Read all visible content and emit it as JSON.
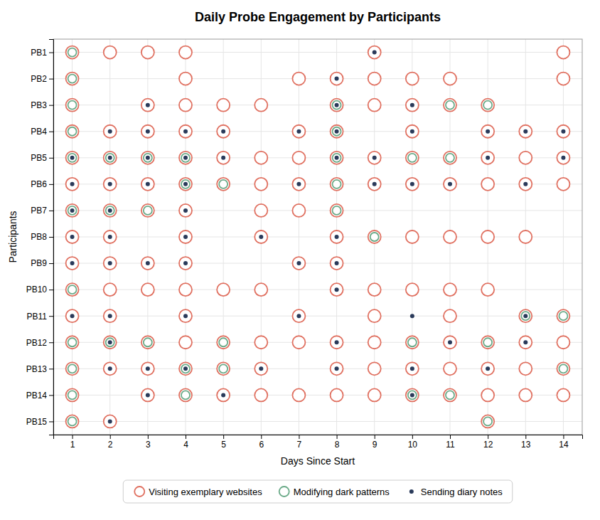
{
  "chart_data": {
    "type": "scatter",
    "title": "Daily Probe Engagement by Participants",
    "xlabel": "Days Since Start",
    "ylabel": "Participants",
    "categories": [
      "PB1",
      "PB2",
      "PB3",
      "PB4",
      "PB5",
      "PB6",
      "PB7",
      "PB8",
      "PB9",
      "PB10",
      "PB11",
      "PB12",
      "PB13",
      "PB14",
      "PB15"
    ],
    "xlim": [
      0.5,
      14.5
    ],
    "xticks": [
      1,
      2,
      3,
      4,
      5,
      6,
      7,
      8,
      9,
      10,
      11,
      12,
      13,
      14
    ],
    "grid": true,
    "legend": "bottom",
    "series": [
      {
        "name": "Visiting exemplary websites",
        "color": "#e07060",
        "marker": "ring",
        "x": [
          1,
          2,
          3,
          4,
          9,
          14,
          1,
          4,
          7,
          8,
          9,
          10,
          11,
          14,
          1,
          3,
          4,
          5,
          6,
          8,
          9,
          10,
          11,
          12,
          1,
          2,
          3,
          4,
          5,
          7,
          8,
          10,
          12,
          13,
          14,
          1,
          2,
          3,
          4,
          5,
          6,
          7,
          8,
          9,
          10,
          11,
          12,
          13,
          14,
          1,
          2,
          3,
          4,
          5,
          6,
          7,
          8,
          9,
          10,
          11,
          12,
          13,
          14,
          1,
          2,
          3,
          4,
          6,
          7,
          8,
          1,
          2,
          4,
          6,
          8,
          9,
          10,
          11,
          12,
          13,
          1,
          2,
          3,
          4,
          7,
          8,
          1,
          2,
          3,
          4,
          5,
          6,
          8,
          9,
          10,
          11,
          12,
          1,
          2,
          4,
          7,
          9,
          11,
          13,
          14,
          1,
          2,
          3,
          4,
          5,
          6,
          7,
          8,
          9,
          10,
          11,
          12,
          13,
          14,
          1,
          2,
          3,
          4,
          5,
          6,
          8,
          9,
          10,
          11,
          12,
          13,
          14,
          1,
          3,
          4,
          5,
          6,
          7,
          8,
          9,
          10,
          11,
          12,
          13,
          14,
          1,
          2,
          12
        ],
        "values": [
          "PB1",
          "PB1",
          "PB1",
          "PB1",
          "PB1",
          "PB1",
          "PB2",
          "PB2",
          "PB2",
          "PB2",
          "PB2",
          "PB2",
          "PB2",
          "PB2",
          "PB3",
          "PB3",
          "PB3",
          "PB3",
          "PB3",
          "PB3",
          "PB3",
          "PB3",
          "PB3",
          "PB3",
          "PB4",
          "PB4",
          "PB4",
          "PB4",
          "PB4",
          "PB4",
          "PB4",
          "PB4",
          "PB4",
          "PB4",
          "PB4",
          "PB5",
          "PB5",
          "PB5",
          "PB5",
          "PB5",
          "PB5",
          "PB5",
          "PB5",
          "PB5",
          "PB5",
          "PB5",
          "PB5",
          "PB5",
          "PB5",
          "PB6",
          "PB6",
          "PB6",
          "PB6",
          "PB6",
          "PB6",
          "PB6",
          "PB6",
          "PB6",
          "PB6",
          "PB6",
          "PB6",
          "PB6",
          "PB6",
          "PB7",
          "PB7",
          "PB7",
          "PB7",
          "PB7",
          "PB7",
          "PB7",
          "PB8",
          "PB8",
          "PB8",
          "PB8",
          "PB8",
          "PB8",
          "PB8",
          "PB8",
          "PB8",
          "PB8",
          "PB9",
          "PB9",
          "PB9",
          "PB9",
          "PB9",
          "PB9",
          "PB10",
          "PB10",
          "PB10",
          "PB10",
          "PB10",
          "PB10",
          "PB10",
          "PB10",
          "PB10",
          "PB10",
          "PB10",
          "PB11",
          "PB11",
          "PB11",
          "PB11",
          "PB11",
          "PB11",
          "PB11",
          "PB11",
          "PB12",
          "PB12",
          "PB12",
          "PB12",
          "PB12",
          "PB12",
          "PB12",
          "PB12",
          "PB12",
          "PB12",
          "PB12",
          "PB12",
          "PB12",
          "PB12",
          "PB13",
          "PB13",
          "PB13",
          "PB13",
          "PB13",
          "PB13",
          "PB13",
          "PB13",
          "PB13",
          "PB13",
          "PB13",
          "PB13",
          "PB13",
          "PB14",
          "PB14",
          "PB14",
          "PB14",
          "PB14",
          "PB14",
          "PB14",
          "PB14",
          "PB14",
          "PB14",
          "PB14",
          "PB14",
          "PB14",
          "PB15",
          "PB15",
          "PB15"
        ]
      },
      {
        "name": "Modifying dark patterns",
        "color": "#6aaa88",
        "marker": "ring",
        "x": [
          1,
          1,
          1,
          8,
          11,
          12,
          1,
          8,
          1,
          2,
          3,
          4,
          8,
          10,
          11,
          4,
          5,
          8,
          1,
          2,
          3,
          8,
          9,
          1,
          13,
          14,
          1,
          2,
          3,
          5,
          10,
          12,
          1,
          4,
          5,
          14,
          1,
          4,
          10,
          11,
          1,
          12
        ],
        "values": [
          "PB1",
          "PB2",
          "PB3",
          "PB3",
          "PB3",
          "PB3",
          "PB4",
          "PB4",
          "PB5",
          "PB5",
          "PB5",
          "PB5",
          "PB5",
          "PB5",
          "PB5",
          "PB6",
          "PB6",
          "PB6",
          "PB7",
          "PB7",
          "PB7",
          "PB7",
          "PB8",
          "PB10",
          "PB11",
          "PB11",
          "PB12",
          "PB12",
          "PB12",
          "PB12",
          "PB12",
          "PB12",
          "PB13",
          "PB13",
          "PB13",
          "PB13",
          "PB14",
          "PB14",
          "PB14",
          "PB14",
          "PB15",
          "PB15"
        ]
      },
      {
        "name": "Sending diary notes",
        "color": "#2a3a5a",
        "marker": "dot",
        "x": [
          9,
          8,
          3,
          8,
          10,
          2,
          3,
          4,
          5,
          7,
          8,
          10,
          12,
          13,
          14,
          1,
          2,
          3,
          4,
          5,
          8,
          9,
          12,
          14,
          1,
          2,
          3,
          4,
          7,
          9,
          10,
          11,
          13,
          1,
          2,
          4,
          1,
          2,
          4,
          6,
          8,
          1,
          2,
          3,
          4,
          7,
          8,
          8,
          1,
          2,
          4,
          7,
          10,
          13,
          2,
          8,
          11,
          13,
          2,
          3,
          4,
          6,
          8,
          10,
          12,
          3,
          5,
          10,
          2
        ],
        "values": [
          "PB1",
          "PB2",
          "PB3",
          "PB3",
          "PB3",
          "PB4",
          "PB4",
          "PB4",
          "PB4",
          "PB4",
          "PB4",
          "PB4",
          "PB4",
          "PB4",
          "PB4",
          "PB5",
          "PB5",
          "PB5",
          "PB5",
          "PB5",
          "PB5",
          "PB5",
          "PB5",
          "PB5",
          "PB6",
          "PB6",
          "PB6",
          "PB6",
          "PB6",
          "PB6",
          "PB6",
          "PB6",
          "PB6",
          "PB7",
          "PB7",
          "PB7",
          "PB8",
          "PB8",
          "PB8",
          "PB8",
          "PB8",
          "PB9",
          "PB9",
          "PB9",
          "PB9",
          "PB9",
          "PB9",
          "PB10",
          "PB11",
          "PB11",
          "PB11",
          "PB11",
          "PB11",
          "PB11",
          "PB12",
          "PB12",
          "PB12",
          "PB12",
          "PB13",
          "PB13",
          "PB13",
          "PB13",
          "PB13",
          "PB13",
          "PB13",
          "PB14",
          "PB14",
          "PB14",
          "PB15"
        ]
      }
    ]
  }
}
